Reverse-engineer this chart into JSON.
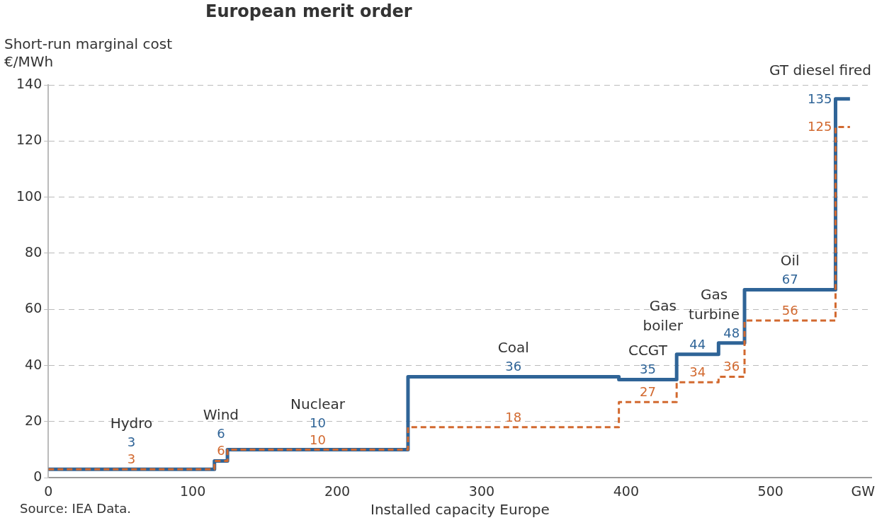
{
  "chart_data": {
    "type": "step",
    "title": "European merit order",
    "ylabel": "Short-run marginal cost\n€/MWh",
    "xlabel": "Installed capacity Europe",
    "x": [
      0,
      57.5,
      115,
      119.5,
      124,
      186.5,
      249,
      322,
      395,
      415,
      435,
      449.5,
      464,
      473,
      482,
      513.5,
      545,
      550,
      555
    ],
    "series": [
      {
        "color": "#2f6497",
        "line_style": "solid",
        "values": [
          3,
          3,
          6,
          6,
          10,
          10,
          36,
          36,
          35,
          35,
          44,
          44,
          48,
          48,
          67,
          67,
          135,
          135,
          135
        ],
        "value_labels": [
          null,
          "3",
          null,
          "6",
          null,
          "10",
          null,
          "36",
          null,
          "35",
          null,
          "44",
          null,
          "48",
          null,
          "67",
          null,
          "135",
          null
        ]
      },
      {
        "color": "#d2692f",
        "line_style": "dashed",
        "values": [
          3,
          3,
          6,
          6,
          10,
          10,
          18,
          18,
          27,
          27,
          34,
          34,
          36,
          36,
          56,
          56,
          125,
          125,
          125
        ],
        "value_labels": [
          null,
          "3",
          null,
          "6",
          null,
          "10",
          null,
          "18",
          null,
          "27",
          null,
          "34",
          null,
          "36",
          null,
          "56",
          null,
          "125",
          null
        ]
      }
    ],
    "xlim": [
      0,
      570
    ],
    "xticks": [
      0,
      100,
      200,
      300,
      400,
      500,
      {
        "value": 564,
        "label": "GW"
      }
    ],
    "ylim": [
      0,
      140
    ],
    "yticks": [
      0,
      20,
      40,
      60,
      80,
      100,
      120,
      140
    ],
    "grid": "y",
    "annotations": [
      {
        "text": "Hydro",
        "x": 57.5,
        "y": 3
      },
      {
        "text": "Wind",
        "x": 119.5,
        "y": 6
      },
      {
        "text": "Nuclear",
        "x": 186.5,
        "y": 10
      },
      {
        "text": "Coal",
        "x": 322,
        "y": 36
      },
      {
        "text": "CCGT",
        "x": 415,
        "y": 35
      },
      {
        "text": "Gas\nboiler",
        "x": 449.5,
        "y": 44
      },
      {
        "text": "Gas\nturbine",
        "x": 473,
        "y": 48
      },
      {
        "text": "Oil",
        "x": 513.5,
        "y": 67
      },
      {
        "text": "GT diesel fired",
        "x": 550,
        "y": 135
      },
      "Source: IEA Data."
    ]
  }
}
